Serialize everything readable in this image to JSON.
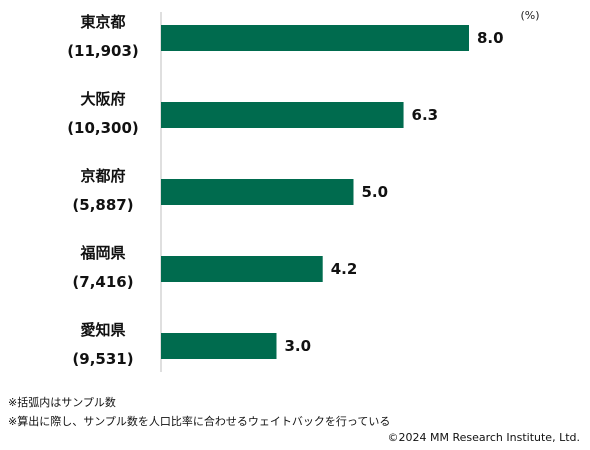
{
  "chart_data": {
    "type": "bar",
    "orientation": "horizontal",
    "unit_label": "(%)",
    "categories": [
      "東京都",
      "大阪府",
      "京都府",
      "福岡県",
      "愛知県"
    ],
    "sample_sizes": [
      "(11,903)",
      "(10,300)",
      "(5,887)",
      "(7,416)",
      "(9,531)"
    ],
    "values": [
      8.0,
      6.3,
      5.0,
      4.2,
      3.0
    ],
    "value_labels": [
      "8.0",
      "6.3",
      "5.0",
      "4.2",
      "3.0"
    ],
    "xlim": [
      0,
      9
    ],
    "bar_color": "#006B4E",
    "grid": false,
    "legend": "none"
  },
  "notes": {
    "note1": "※括弧内はサンプル数",
    "note2": "※算出に際し、サンプル数を人口比率に合わせるウェイトバックを行っている"
  },
  "copyright": "©2024 MM Research Institute, Ltd."
}
